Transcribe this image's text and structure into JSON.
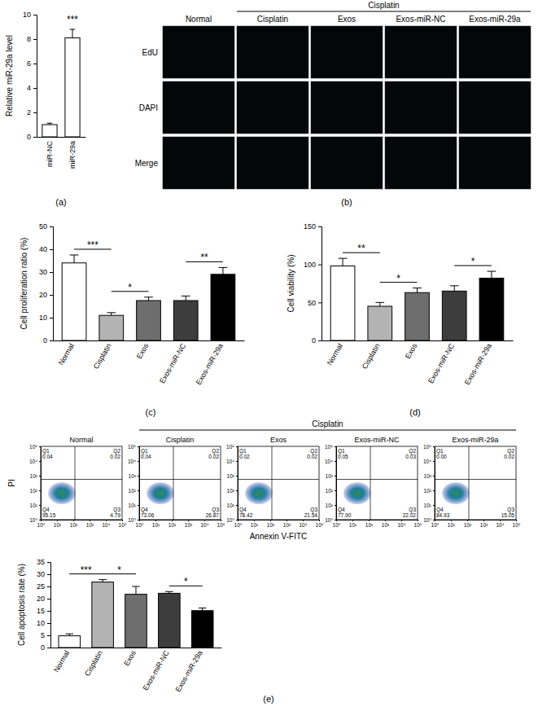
{
  "chart_data": [
    {
      "type": "bar",
      "panel": "(a)",
      "categories": [
        "miR-NC",
        "miR-29a"
      ],
      "values": [
        1,
        8.1
      ],
      "errors": [
        0.12,
        0.7
      ],
      "colors": [
        "#ffffff",
        "#ffffff"
      ],
      "ylim": [
        0,
        10
      ],
      "yticks": [
        0,
        2,
        4,
        6,
        8,
        10
      ],
      "y_label": "Relative miR-29a level",
      "annotations": [
        {
          "text": "***",
          "between": [
            "miR-29a"
          ]
        }
      ]
    },
    {
      "type": "image_grid",
      "panel": "(b)",
      "group": {
        "label": "Cisplatin",
        "members": [
          "Cisplatin",
          "Exos",
          "Exos-miR-NC",
          "Exos-miR-29a"
        ]
      },
      "columns": [
        "Normal",
        "Cisplatin",
        "Exos",
        "Exos-miR-NC",
        "Exos-miR-29a"
      ],
      "rows": [
        "EdU",
        "DAPI",
        "Merge"
      ]
    },
    {
      "type": "bar",
      "panel": "(c)",
      "categories": [
        "Normal",
        "Cisplatin",
        "Exos",
        "Exos-miR-NC",
        "Exos-miR-29a"
      ],
      "values": [
        34,
        11,
        17.5,
        17.5,
        29
      ],
      "errors": [
        3.5,
        1.2,
        1.5,
        2,
        3
      ],
      "colors": [
        "#ffffff",
        "#b3b3b3",
        "#6e6e6e",
        "#3d3d3d",
        "#000000"
      ],
      "ylim": [
        0,
        50
      ],
      "yticks": [
        0,
        10,
        20,
        30,
        40,
        50
      ],
      "y_label": "Cell proliferation ratio (%)",
      "annotations": [
        {
          "text": "***",
          "between": [
            "Normal",
            "Cisplatin"
          ]
        },
        {
          "text": "*",
          "between": [
            "Cisplatin",
            "Exos"
          ]
        },
        {
          "text": "**",
          "between": [
            "Exos-miR-NC",
            "Exos-miR-29a"
          ]
        }
      ]
    },
    {
      "type": "bar",
      "panel": "(d)",
      "categories": [
        "Normal",
        "Cisplatin",
        "Exos",
        "Exos-miR-NC",
        "Exos-miR-29a"
      ],
      "values": [
        98,
        45,
        63,
        65,
        82
      ],
      "errors": [
        10,
        5,
        6,
        7,
        9
      ],
      "colors": [
        "#ffffff",
        "#b3b3b3",
        "#6e6e6e",
        "#3d3d3d",
        "#000000"
      ],
      "ylim": [
        0,
        150
      ],
      "yticks": [
        0,
        50,
        100,
        150
      ],
      "y_label": "Cell viability (%)",
      "annotations": [
        {
          "text": "**",
          "between": [
            "Normal",
            "Cisplatin"
          ]
        },
        {
          "text": "*",
          "between": [
            "Cisplatin",
            "Exos"
          ]
        },
        {
          "text": "*",
          "between": [
            "Exos-miR-NC",
            "Exos-miR-29a"
          ]
        }
      ]
    },
    {
      "type": "flow_cytometry",
      "log": true,
      "group": {
        "label": "Cisplatin",
        "members": [
          "Cisplatin",
          "Exos",
          "Exos-miR-NC",
          "Exos-miR-29a"
        ]
      },
      "x_label": "Annexin V-FITC",
      "y_label": "PI",
      "xlim": [
        1,
        100000
      ],
      "ylim": [
        1,
        100000
      ],
      "xticks": [
        {
          "value": 1,
          "label": "10⁰"
        },
        {
          "value": 10,
          "label": "10¹"
        },
        {
          "value": 100,
          "label": "10²"
        },
        {
          "value": 1000,
          "label": "10³"
        },
        {
          "value": 10000,
          "label": "10⁴"
        },
        {
          "value": 100000,
          "label": "10⁵"
        }
      ],
      "yticks": [
        {
          "value": 1,
          "label": "10⁰"
        },
        {
          "value": 10,
          "label": "10¹"
        },
        {
          "value": 100,
          "label": "10²"
        },
        {
          "value": 1000,
          "label": "10³"
        },
        {
          "value": 10000,
          "label": "10⁴"
        },
        {
          "value": 100000,
          "label": "10⁵"
        }
      ],
      "quadrants": [
        "Q1",
        "Q2",
        "Q3",
        "Q4"
      ],
      "plots": [
        {
          "title": "Normal",
          "values": [
            0.04,
            0.02,
            4.79,
            95.15
          ],
          "value_labels": [
            "0.04",
            "0.02",
            "4.79",
            "95.15"
          ]
        },
        {
          "title": "Cisplatin",
          "values": [
            0.04,
            0.02,
            26.87,
            73.06
          ],
          "value_labels": [
            "0.04",
            "0.02",
            "26.87",
            "73.06"
          ]
        },
        {
          "title": "Exos",
          "values": [
            0.02,
            0.02,
            21.54,
            78.42
          ],
          "value_labels": [
            "0.02",
            "0.02",
            "21.54",
            "78.42"
          ]
        },
        {
          "title": "Exos-miR-NC",
          "values": [
            0.05,
            0.03,
            22.02,
            77.9
          ],
          "value_labels": [
            "0.05",
            "0.03",
            "22.02",
            "77.90"
          ]
        },
        {
          "title": "Exos-miR-29a",
          "values": [
            0,
            0.02,
            15.05,
            84.93
          ],
          "value_labels": [
            "0.00",
            "0.02",
            "15.05",
            "84.93"
          ]
        }
      ]
    },
    {
      "type": "bar",
      "panel": "(e)",
      "categories": [
        "Normal",
        "Cisplatin",
        "Exos",
        "Exos-miR-NC",
        "Exos-miR-29a"
      ],
      "values": [
        4.8,
        26.8,
        21.8,
        22.2,
        15.1
      ],
      "errors": [
        0.8,
        1,
        3.2,
        0.7,
        1.1
      ],
      "colors": [
        "#ffffff",
        "#b3b3b3",
        "#6e6e6e",
        "#3d3d3d",
        "#000000"
      ],
      "ylim": [
        0,
        35
      ],
      "yticks": [
        0,
        5,
        10,
        15,
        20,
        25,
        30,
        35
      ],
      "y_label": "Cell apoptosis rate (%)",
      "annotations": [
        {
          "text": "***",
          "between": [
            "Normal",
            "Cisplatin"
          ]
        },
        {
          "text": "*",
          "between": [
            "Cisplatin",
            "Exos"
          ]
        },
        {
          "text": "*",
          "between": [
            "Exos-miR-NC",
            "Exos-miR-29a"
          ]
        }
      ]
    }
  ]
}
